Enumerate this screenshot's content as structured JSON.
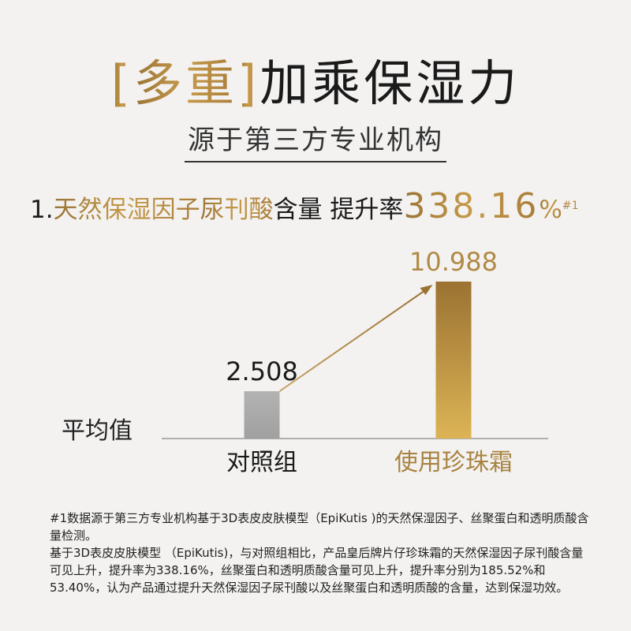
{
  "title": {
    "bracket_open": "[",
    "highlight": "多重",
    "bracket_close": "]",
    "rest": "加乘保湿力"
  },
  "subtitle": "源于第三方专业机构",
  "headline": {
    "prefix": "1.",
    "ingredient_part1": "天然保湿因子",
    "ingredient_part2": "尿刊酸",
    "suffix": "含量 提升率",
    "rate": "338.16",
    "percent": "%",
    "footnote_ref": "#1"
  },
  "colors": {
    "gold": "#b68a3e",
    "control_bar": "#a9a9a9",
    "background": "#f3f2f1"
  },
  "chart_data": {
    "type": "bar",
    "categories": [
      "对照组",
      "使用珍珠霜"
    ],
    "values": [
      2.508,
      10.988
    ],
    "value_labels": [
      "2.508",
      "10.988"
    ],
    "ylabel": "平均值",
    "annotation": "arrow from 对照组 to 使用珍珠霜 indicating increase",
    "grid": false
  },
  "footnote": [
    "#1数据源于第三方专业机构基于3D表皮皮肤模型（EpiKutis )的天然保湿因子、丝聚蛋白和透明质酸含量检测。",
    "基于3D表皮皮肤模型 （EpiKutis)，与对照组相比，产品皇后牌片仔珍珠霜的天然保湿因子尿刊酸含量可见上升，提升率为338.16%，丝聚蛋白和透明质酸含量可见上升，提升率分别为185.52%和53.40%，认为产品通过提升天然保湿因子尿刊酸以及丝聚蛋白和透明质酸的含量，达到保湿功效。"
  ]
}
